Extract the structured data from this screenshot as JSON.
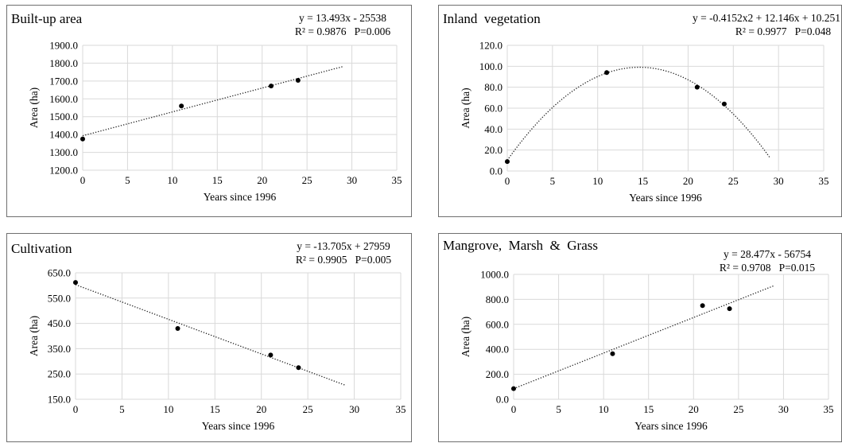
{
  "charts": [
    {
      "chart_data": {
        "type": "scatter",
        "title": "Built-up area",
        "equation": "y = 13.493x - 25538",
        "stats": "R² = 0.9876   P=0.006",
        "xlabel": "Years since 1996",
        "ylabel": "Area (ha)",
        "xlim": [
          0,
          35
        ],
        "ylim": [
          1200,
          1900
        ],
        "xticks": [
          "0",
          "5",
          "10",
          "15",
          "20",
          "25",
          "30",
          "35"
        ],
        "yticks": [
          "1200.0",
          "1300.0",
          "1400.0",
          "1500.0",
          "1600.0",
          "1700.0",
          "1800.0",
          "1900.0"
        ],
        "series": [
          {
            "x": [
              0,
              11,
              21,
              24
            ],
            "y": [
              1375,
              1560,
              1672,
              1704
            ]
          }
        ],
        "trendline": {
          "kind": "linear",
          "x": [
            0,
            29
          ],
          "y": [
            1393,
            1781
          ]
        },
        "grid": true
      }
    },
    {
      "chart_data": {
        "type": "scatter",
        "title": "Inland  vegetation",
        "equation": "y = -0.4152x2 + 12.146x + 10.251",
        "stats": "R² = 0.9977   P=0.048",
        "xlabel": "Years since 1996",
        "ylabel": "Area (ha)",
        "xlim": [
          0,
          35
        ],
        "ylim": [
          0,
          120
        ],
        "xticks": [
          "0",
          "5",
          "10",
          "15",
          "20",
          "25",
          "30",
          "35"
        ],
        "yticks": [
          "0.0",
          "20.0",
          "40.0",
          "60.0",
          "80.0",
          "100.0",
          "120.0"
        ],
        "series": [
          {
            "x": [
              0,
              11,
              21,
              24
            ],
            "y": [
              9,
              94,
              80,
              64
            ]
          }
        ],
        "trendline": {
          "kind": "quadratic",
          "a": -0.4152,
          "b": 12.146,
          "c": 10.251,
          "x": [
            0,
            29
          ]
        },
        "grid": true
      }
    },
    {
      "chart_data": {
        "type": "scatter",
        "title": "Cultivation",
        "equation": "y = -13.705x + 27959",
        "stats": "R² = 0.9905   P=0.005",
        "xlabel": "Years since 1996",
        "ylabel": "Area (ha)",
        "xlim": [
          0,
          35
        ],
        "ylim": [
          150,
          650
        ],
        "xticks": [
          "0",
          "5",
          "10",
          "15",
          "20",
          "25",
          "30",
          "35"
        ],
        "yticks": [
          "150.0",
          "250.0",
          "350.0",
          "450.0",
          "550.0",
          "650.0"
        ],
        "series": [
          {
            "x": [
              0,
              11,
              21,
              24
            ],
            "y": [
              612,
              430,
              325,
              275
            ]
          }
        ],
        "trendline": {
          "kind": "linear",
          "x": [
            0,
            29
          ],
          "y": [
            603,
            206
          ]
        },
        "grid": true
      }
    },
    {
      "chart_data": {
        "type": "scatter",
        "title": "Mangrove,  Marsh  &  Grass",
        "equation": "y = 28.477x - 56754",
        "stats": "R² = 0.9708   P=0.015",
        "xlabel": "Years since 1996",
        "ylabel": "Area (ha)",
        "xlim": [
          0,
          35
        ],
        "ylim": [
          0,
          1000
        ],
        "xticks": [
          "0",
          "5",
          "10",
          "15",
          "20",
          "25",
          "30",
          "35"
        ],
        "yticks": [
          "0.0",
          "200.0",
          "400.0",
          "600.0",
          "800.0",
          "1000.0"
        ],
        "series": [
          {
            "x": [
              0,
              11,
              21,
              24
            ],
            "y": [
              85,
              365,
              750,
              725
            ]
          }
        ],
        "trendline": {
          "kind": "linear",
          "x": [
            0,
            29
          ],
          "y": [
            85,
            911
          ]
        },
        "grid": true
      }
    }
  ]
}
